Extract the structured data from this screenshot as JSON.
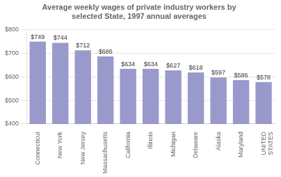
{
  "chart_data": {
    "type": "bar",
    "title": "Average weekly wages of private industry workers by\nselected State, 1997 annual averages",
    "categories": [
      "Connecticut",
      "New York",
      "New Jersey",
      "Massachusetts",
      "California",
      "Illinois",
      "Michigan",
      "Delaware",
      "Alaska",
      "Maryland",
      "UNITED\nSTATES"
    ],
    "values": [
      749,
      744,
      712,
      686,
      634,
      634,
      627,
      618,
      597,
      586,
      578
    ],
    "value_labels": [
      "$749",
      "$744",
      "$712",
      "$686",
      "$634",
      "$634",
      "$627",
      "$618",
      "$597",
      "$586",
      "$578"
    ],
    "data_labels": true,
    "color": "#9999cc",
    "ylim": [
      400,
      800
    ],
    "yticks": [
      {
        "value": 400,
        "label": "$400"
      },
      {
        "value": 500,
        "label": "$500"
      },
      {
        "value": 600,
        "label": "$600"
      },
      {
        "value": 700,
        "label": "$700"
      },
      {
        "value": 800,
        "label": "$800"
      }
    ],
    "grid": true
  }
}
